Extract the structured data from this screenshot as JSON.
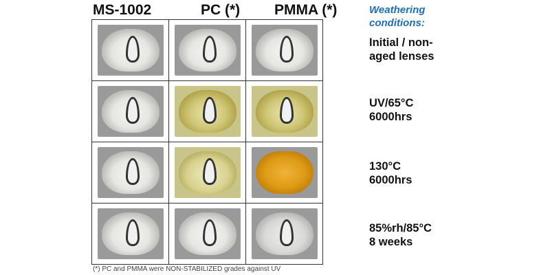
{
  "columns": [
    "MS-1002",
    "PC (*)",
    "PMMA (*)"
  ],
  "weathering_title": "Weathering conditions:",
  "rows": [
    {
      "condition_line1": "Initial / non-",
      "condition_line2": "aged lenses",
      "lenses": [
        "clear",
        "clear",
        "clear"
      ]
    },
    {
      "condition_line1": "UV/65°C",
      "condition_line2": "6000hrs",
      "lenses": [
        "clear",
        "yellow",
        "yellow"
      ]
    },
    {
      "condition_line1": "130°C",
      "condition_line2": "6000hrs",
      "lenses": [
        "clear",
        "yellowl",
        "amber"
      ]
    },
    {
      "condition_line1": "85%rh/85°C",
      "condition_line2": "8 weeks",
      "lenses": [
        "clear",
        "clear",
        "hazy"
      ]
    }
  ],
  "footnote": "(*) PC and PMMA were NON-STABILIZED grades against UV",
  "colors": {
    "accent": "#1f6fb5",
    "yellowed": "#cfc676",
    "amber": "#dd9a14"
  }
}
